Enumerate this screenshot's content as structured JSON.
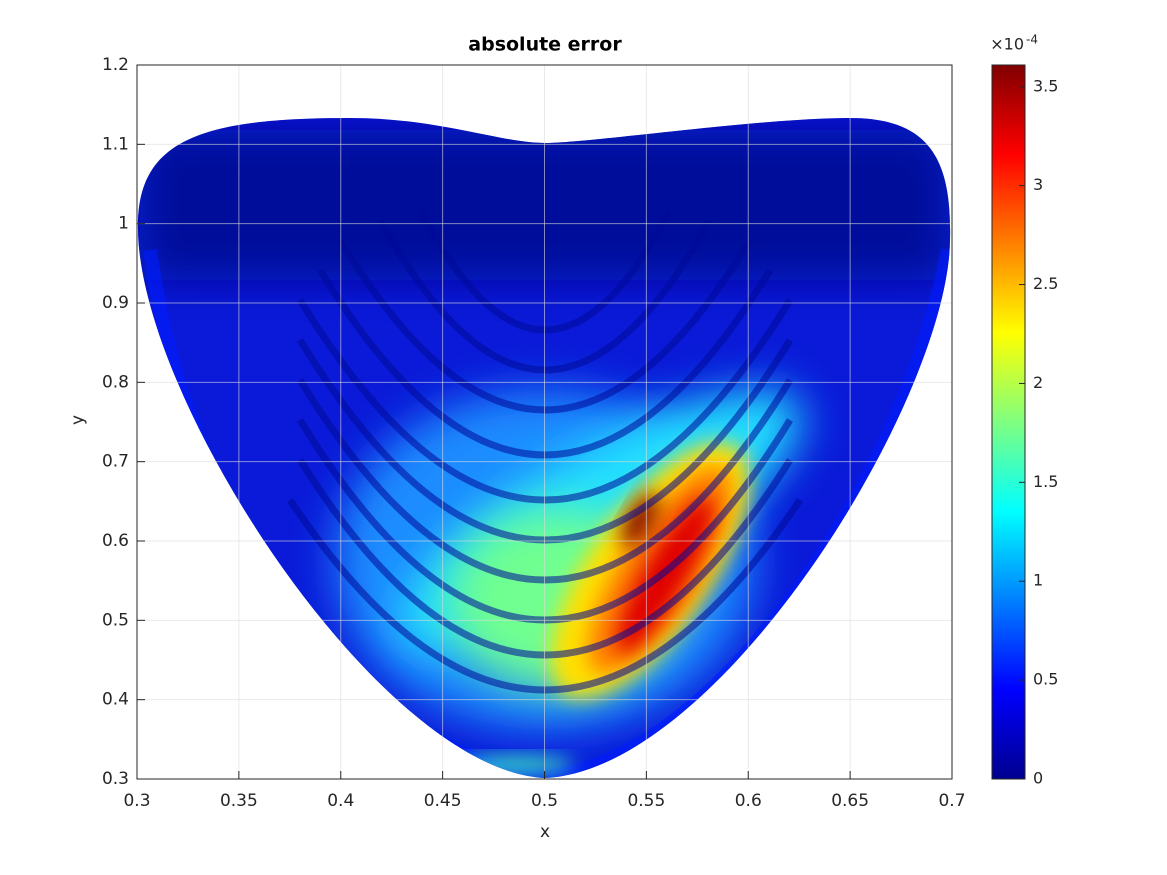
{
  "chart_data": {
    "type": "contourf",
    "title": "absolute error",
    "xlabel": "x",
    "ylabel": "y",
    "xlim": [
      0.3,
      0.7
    ],
    "xticks": [
      0.3,
      0.35,
      0.4,
      0.45,
      0.5,
      0.55,
      0.6,
      0.65,
      0.7
    ],
    "ylim": [
      0.3,
      1.2
    ],
    "yticks": [
      0.3,
      0.4,
      0.5,
      0.6,
      0.7,
      0.8,
      0.9,
      1,
      1.1,
      1.2
    ],
    "grid": true,
    "colormap": "jet",
    "colorbar": {
      "clim": [
        0,
        3.61
      ],
      "ticks": [
        0,
        0.5,
        1,
        1.5,
        2,
        2.5,
        3,
        3.5
      ],
      "multiplier_base": "×10",
      "multiplier_exponent": "-4"
    }
  }
}
